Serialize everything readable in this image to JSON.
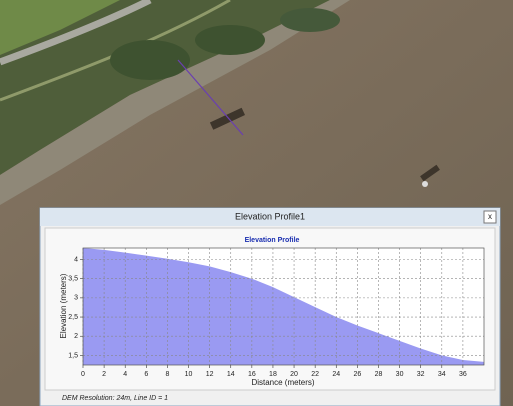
{
  "window": {
    "title": "Elevation Profile1",
    "close": "x",
    "footer": "DEM Resolution: 24m, Line ID = 1"
  },
  "chart_data": {
    "type": "area",
    "title": "Elevation Profile",
    "x_label": "Distance (meters)",
    "y_label": "Elevation (meters)",
    "x": [
      0,
      2,
      4,
      6,
      8,
      10,
      12,
      14,
      16,
      18,
      20,
      22,
      24,
      26,
      28,
      30,
      32,
      34,
      36,
      38
    ],
    "values": [
      4.3,
      4.25,
      4.18,
      4.1,
      4.02,
      3.93,
      3.82,
      3.67,
      3.5,
      3.28,
      3.02,
      2.76,
      2.5,
      2.28,
      2.08,
      1.88,
      1.68,
      1.5,
      1.38,
      1.33
    ],
    "color": "#9a9af2",
    "xlim": [
      0,
      38
    ],
    "ylim": [
      1.25,
      4.3
    ],
    "xticks": [
      0,
      2,
      4,
      6,
      8,
      10,
      12,
      14,
      16,
      18,
      20,
      22,
      24,
      26,
      28,
      30,
      32,
      34,
      36
    ],
    "yticks": [
      {
        "value": 1.5,
        "label": "1,5"
      },
      2,
      {
        "value": 2.5,
        "label": "2,5"
      },
      3,
      {
        "value": 3.5,
        "label": "3,5"
      },
      4
    ],
    "grid": true
  }
}
